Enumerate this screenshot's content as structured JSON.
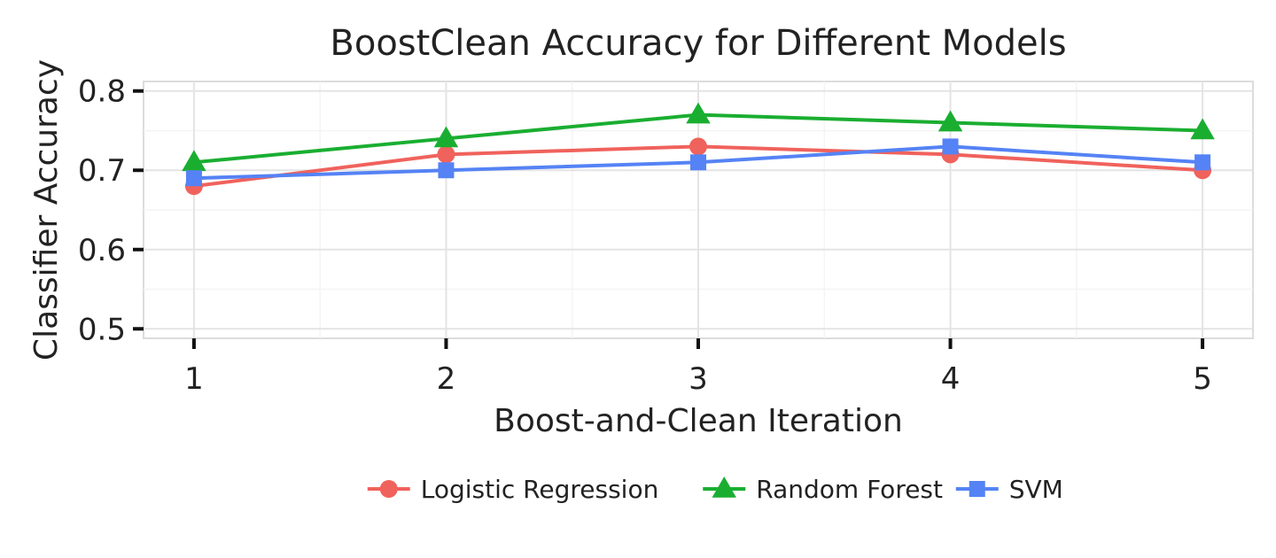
{
  "chart_data": {
    "type": "line",
    "title": "BoostClean Accuracy for Different Models",
    "xlabel": "Boost-and-Clean Iteration",
    "ylabel": "Classifier Accuracy",
    "x": [
      1,
      2,
      3,
      4,
      5
    ],
    "xlim": [
      0.8,
      5.2
    ],
    "ylim": [
      0.488,
      0.812
    ],
    "xticks": [
      1,
      2,
      3,
      4,
      5
    ],
    "yticks": [
      0.5,
      0.6,
      0.7,
      0.8
    ],
    "grid": true,
    "legend_position": "bottom",
    "series": [
      {
        "name": "Logistic Regression",
        "marker": "circle",
        "color": "#F0625C",
        "values": [
          0.68,
          0.72,
          0.73,
          0.72,
          0.7
        ]
      },
      {
        "name": "Random Forest",
        "marker": "triangle",
        "color": "#1AAE31",
        "values": [
          0.71,
          0.74,
          0.77,
          0.76,
          0.75
        ]
      },
      {
        "name": "SVM",
        "marker": "square",
        "color": "#5583F5",
        "values": [
          0.69,
          0.7,
          0.71,
          0.73,
          0.71
        ]
      }
    ]
  }
}
